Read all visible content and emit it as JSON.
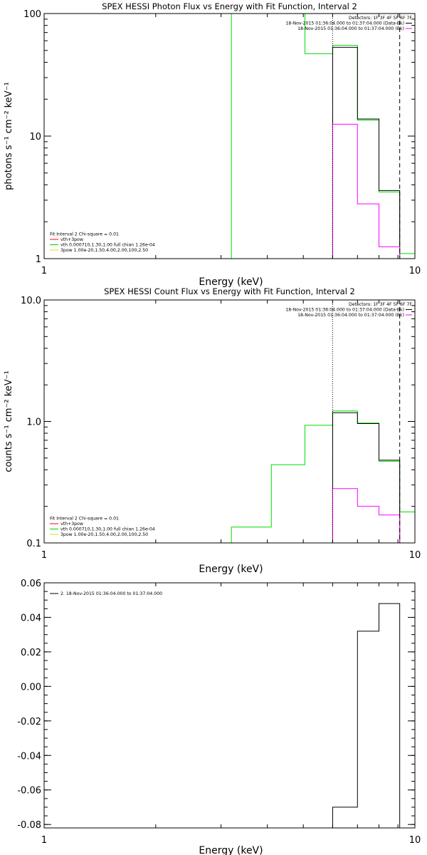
{
  "chart_data": [
    {
      "id": "photon",
      "type": "line",
      "title": "SPEX HESSI Photon Flux vs Energy with Fit Function, Interval 2",
      "xlabel": "Energy (keV)",
      "ylabel": "photons s⁻¹ cm⁻² keV⁻¹",
      "xscale": "log",
      "yscale": "log",
      "xlim": [
        1,
        10
      ],
      "ylim": [
        1,
        100
      ],
      "xticks": [
        {
          "v": 1,
          "label": "1"
        },
        {
          "v": 10,
          "label": "10"
        }
      ],
      "yticks": [
        {
          "v": 1,
          "label": "1"
        },
        {
          "v": 10,
          "label": "10"
        },
        {
          "v": 100,
          "label": "100"
        }
      ],
      "info_lines": [
        "Detectors: 1F 3F 4F 5F 6F 7F",
        "18-Nov-2015 01:36:04.000 to 01:37:04.000 (Data-Bk)",
        "18-Nov-2015 01:36:04.000 to 01:37:04.000 (Bk)"
      ],
      "info_colors": [
        "none",
        "#000000",
        "#ff00ff"
      ],
      "legend": [
        {
          "label": "Fit Interval 2   Chi-square = 0.01",
          "color": "none"
        },
        {
          "label": "vth+3pow",
          "color": "#ff0000"
        },
        {
          "label": "vth 0.000710,1.30,1.00  full chian 1.26e-04",
          "color": "#00cc00"
        },
        {
          "label": "3pow 1.00e-20,1.50,4.00,2.00,100,2.50",
          "color": "#e6d800"
        }
      ],
      "vlines": [
        {
          "x": 6.0,
          "style": "dotted"
        },
        {
          "x": 9.1,
          "style": "dashed"
        }
      ],
      "series": [
        {
          "color": "#00dd00",
          "edges": [
            3.2,
            4.1,
            5.05,
            6.0,
            7.0,
            8.0,
            9.1,
            10.0
          ],
          "values": [
            100,
            100,
            47,
            55,
            13.5,
            3.5,
            1.1
          ]
        },
        {
          "color": "#000000",
          "edges": [
            6.0,
            7.0,
            8.0,
            9.1
          ],
          "values": [
            53,
            13.8,
            3.6
          ]
        },
        {
          "color": "#ff00ff",
          "edges": [
            6.0,
            7.0,
            8.0,
            9.1
          ],
          "values": [
            12.5,
            2.8,
            1.25
          ]
        }
      ]
    },
    {
      "id": "count",
      "type": "line",
      "title": "SPEX HESSI Count Flux vs Energy with Fit Function, Interval 2",
      "xlabel": "Energy (keV)",
      "ylabel": "counts s⁻¹ cm⁻² keV⁻¹",
      "xscale": "log",
      "yscale": "log",
      "xlim": [
        1,
        10
      ],
      "ylim": [
        0.1,
        10
      ],
      "xticks": [
        {
          "v": 1,
          "label": "1"
        },
        {
          "v": 10,
          "label": "10"
        }
      ],
      "yticks": [
        {
          "v": 0.1,
          "label": "0.1"
        },
        {
          "v": 1,
          "label": "1.0"
        },
        {
          "v": 10,
          "label": "10.0"
        }
      ],
      "info_lines": [
        "Detectors: 1F 3F 4F 5F 6F 7F",
        "18-Nov-2015 01:36:04.000 to 01:37:04.000 (Data-Bk)",
        "18-Nov-2015 01:36:04.000 to 01:37:04.000 (Bk)"
      ],
      "info_colors": [
        "none",
        "#000000",
        "#ff00ff"
      ],
      "legend": [
        {
          "label": "Fit Interval 2   Chi-square = 0.01",
          "color": "none"
        },
        {
          "label": "vth+3pow",
          "color": "#ff0000"
        },
        {
          "label": "vth 0.000710,1.30,1.00  full chian 1.26e-04",
          "color": "#00cc00"
        },
        {
          "label": "3pow 1.00e-20,1.50,4.00,2.00,100,2.50",
          "color": "#e6d800"
        }
      ],
      "vlines": [
        {
          "x": 6.0,
          "style": "dotted"
        },
        {
          "x": 9.1,
          "style": "dashed"
        }
      ],
      "series": [
        {
          "color": "#00dd00",
          "edges": [
            3.2,
            4.1,
            5.05,
            6.0,
            7.0,
            8.0,
            9.1,
            10.0
          ],
          "values": [
            0.135,
            0.44,
            0.93,
            1.22,
            0.97,
            0.47,
            0.18
          ]
        },
        {
          "color": "#000000",
          "edges": [
            6.0,
            7.0,
            8.0,
            9.1
          ],
          "values": [
            1.18,
            0.96,
            0.48
          ]
        },
        {
          "color": "#ff00ff",
          "edges": [
            6.0,
            7.0,
            8.0,
            9.1
          ],
          "values": [
            0.28,
            0.2,
            0.17
          ]
        }
      ]
    },
    {
      "id": "residual",
      "type": "line",
      "title": "",
      "xlabel": "Energy (keV)",
      "ylabel": "",
      "xscale": "log",
      "yscale": "linear",
      "xlim": [
        1,
        10
      ],
      "ylim": [
        -0.082,
        0.06
      ],
      "xticks": [
        {
          "v": 1,
          "label": "1"
        },
        {
          "v": 10,
          "label": "10"
        }
      ],
      "yticks": [
        {
          "v": 0.06,
          "label": "0.06"
        },
        {
          "v": 0.04,
          "label": "0.04"
        },
        {
          "v": 0.02,
          "label": "0.02"
        },
        {
          "v": 0.0,
          "label": "0.00"
        },
        {
          "v": -0.02,
          "label": "-0.02"
        },
        {
          "v": -0.04,
          "label": "-0.04"
        },
        {
          "v": -0.06,
          "label": "-0.06"
        },
        {
          "v": -0.08,
          "label": "-0.08"
        }
      ],
      "info_lines": [],
      "info_colors": [],
      "legend": [
        {
          "label": "2. 18-Nov-2015 01:36:04.000 to 01:37:04.000",
          "color": "#000000"
        }
      ],
      "vlines": [],
      "series": [
        {
          "color": "#000000",
          "edges": [
            6.0,
            7.0,
            8.0,
            9.1
          ],
          "values": [
            -0.07,
            0.032,
            0.048
          ],
          "baseline": -0.082
        }
      ]
    }
  ]
}
